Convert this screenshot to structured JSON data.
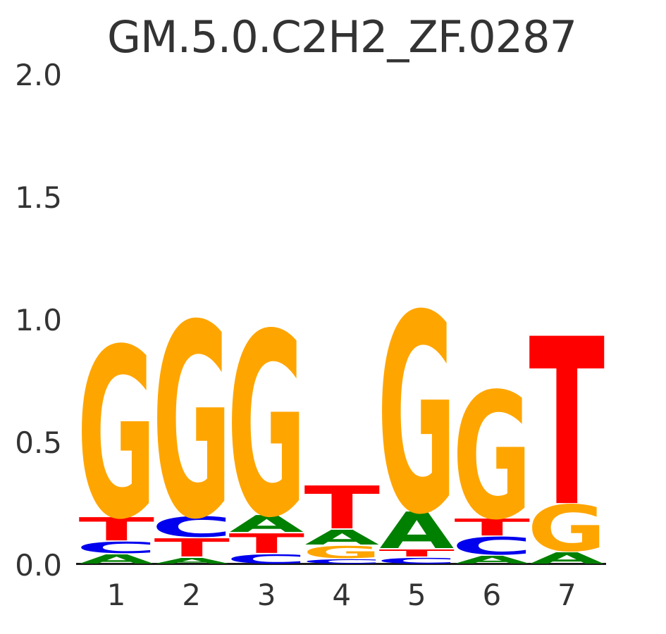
{
  "figure": {
    "title": "GM.5.0.C2H2_ZF.0287"
  },
  "chart_data": {
    "type": "sequence_logo",
    "title": "GM.5.0.C2H2_ZF.0287",
    "ylabel": "",
    "xlabel": "",
    "ylim": [
      0.0,
      2.0
    ],
    "yticks": [
      "0.0",
      "0.5",
      "1.0",
      "1.5",
      "2.0"
    ],
    "xticks": [
      "1",
      "2",
      "3",
      "4",
      "5",
      "6",
      "7"
    ],
    "grid": false,
    "legend": false,
    "axis_text_color": "#333333",
    "base_colors": {
      "A": "#008000",
      "C": "#0000EE",
      "G": "#FFA500",
      "T": "#FF0000"
    },
    "positions": [
      {
        "position": "1",
        "stack_bottom_to_top": [
          {
            "base": "A",
            "bits": 0.043
          },
          {
            "base": "C",
            "bits": 0.052
          },
          {
            "base": "T",
            "bits": 0.101
          },
          {
            "base": "G",
            "bits": 0.701
          }
        ]
      },
      {
        "position": "2",
        "stack_bottom_to_top": [
          {
            "base": "A",
            "bits": 0.029
          },
          {
            "base": "T",
            "bits": 0.08
          },
          {
            "base": "C",
            "bits": 0.089
          },
          {
            "base": "G",
            "bits": 0.799
          }
        ]
      },
      {
        "position": "3",
        "stack_bottom_to_top": [
          {
            "base": "C",
            "bits": 0.043
          },
          {
            "base": "T",
            "bits": 0.086
          },
          {
            "base": "A",
            "bits": 0.075
          },
          {
            "base": "G",
            "bits": 0.756
          }
        ]
      },
      {
        "position": "4",
        "stack_bottom_to_top": [
          {
            "base": "C",
            "bits": 0.023
          },
          {
            "base": "G",
            "bits": 0.055
          },
          {
            "base": "A",
            "bits": 0.066
          },
          {
            "base": "T",
            "bits": 0.181
          }
        ]
      },
      {
        "position": "5",
        "stack_bottom_to_top": [
          {
            "base": "C",
            "bits": 0.029
          },
          {
            "base": "T",
            "bits": 0.034
          },
          {
            "base": "A",
            "bits": 0.155
          },
          {
            "base": "G",
            "bits": 0.819
          }
        ]
      },
      {
        "position": "6",
        "stack_bottom_to_top": [
          {
            "base": "A",
            "bits": 0.037
          },
          {
            "base": "C",
            "bits": 0.078
          },
          {
            "base": "T",
            "bits": 0.075
          },
          {
            "base": "G",
            "bits": 0.523
          }
        ]
      },
      {
        "position": "7",
        "stack_bottom_to_top": [
          {
            "base": "A",
            "bits": 0.052
          },
          {
            "base": "G",
            "bits": 0.195
          },
          {
            "base": "T",
            "bits": 0.69
          }
        ]
      }
    ]
  }
}
